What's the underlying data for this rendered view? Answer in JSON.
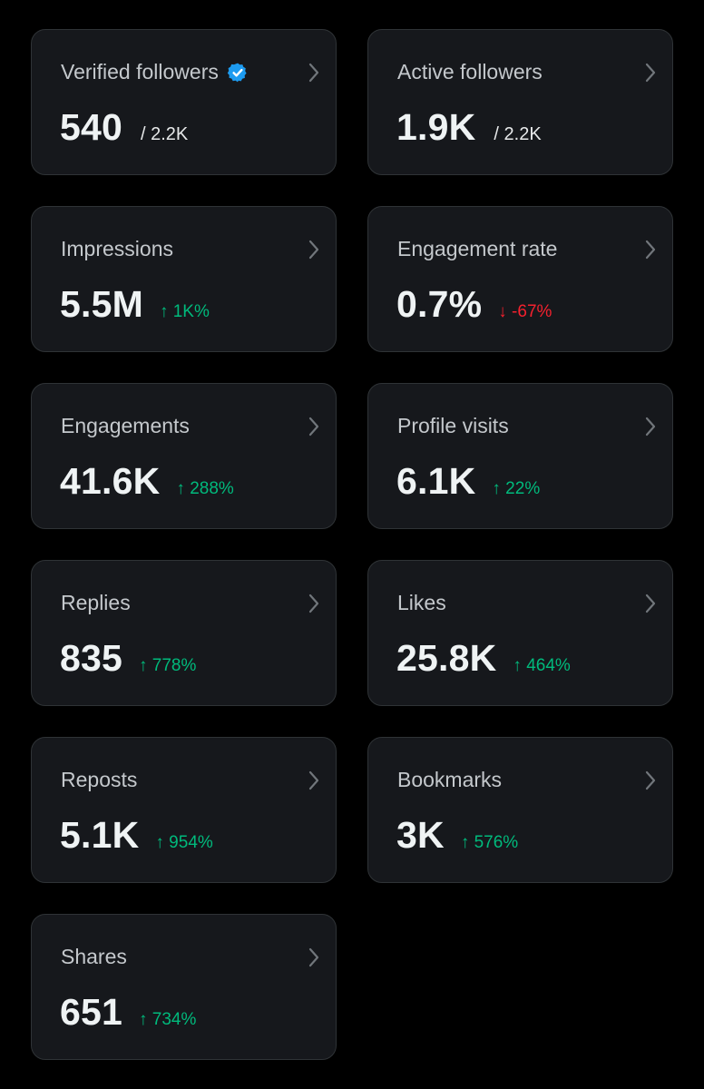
{
  "colors": {
    "page_background": "#000000",
    "card_background": "#16181c",
    "card_border": "#2f3336",
    "label": "#c4c8cc",
    "value": "#eff3f4",
    "positive": "#00ba7c",
    "negative": "#f4212e",
    "verified_badge": "#1d9bf0"
  },
  "cards": [
    {
      "label": "Verified followers",
      "value": "540",
      "sub": "/ 2.2K",
      "badge_icon": "verified-badge-icon",
      "chevron_icon": "chevron-right-icon"
    },
    {
      "label": "Active followers",
      "value": "1.9K",
      "sub": "/ 2.2K",
      "chevron_icon": "chevron-right-icon"
    },
    {
      "label": "Impressions",
      "value": "5.5M",
      "delta": "↑ 1K%",
      "direction": "up",
      "chevron_icon": "chevron-right-icon"
    },
    {
      "label": "Engagement rate",
      "value": "0.7%",
      "delta": "↓ -67%",
      "direction": "down",
      "chevron_icon": "chevron-right-icon"
    },
    {
      "label": "Engagements",
      "value": "41.6K",
      "delta": "↑ 288%",
      "direction": "up",
      "chevron_icon": "chevron-right-icon"
    },
    {
      "label": "Profile visits",
      "value": "6.1K",
      "delta": "↑ 22%",
      "direction": "up",
      "chevron_icon": "chevron-right-icon"
    },
    {
      "label": "Replies",
      "value": "835",
      "delta": "↑ 778%",
      "direction": "up",
      "chevron_icon": "chevron-right-icon"
    },
    {
      "label": "Likes",
      "value": "25.8K",
      "delta": "↑ 464%",
      "direction": "up",
      "chevron_icon": "chevron-right-icon"
    },
    {
      "label": "Reposts",
      "value": "5.1K",
      "delta": "↑ 954%",
      "direction": "up",
      "chevron_icon": "chevron-right-icon"
    },
    {
      "label": "Bookmarks",
      "value": "3K",
      "delta": "↑ 576%",
      "direction": "up",
      "chevron_icon": "chevron-right-icon"
    },
    {
      "label": "Shares",
      "value": "651",
      "delta": "↑ 734%",
      "direction": "up",
      "chevron_icon": "chevron-right-icon"
    }
  ]
}
